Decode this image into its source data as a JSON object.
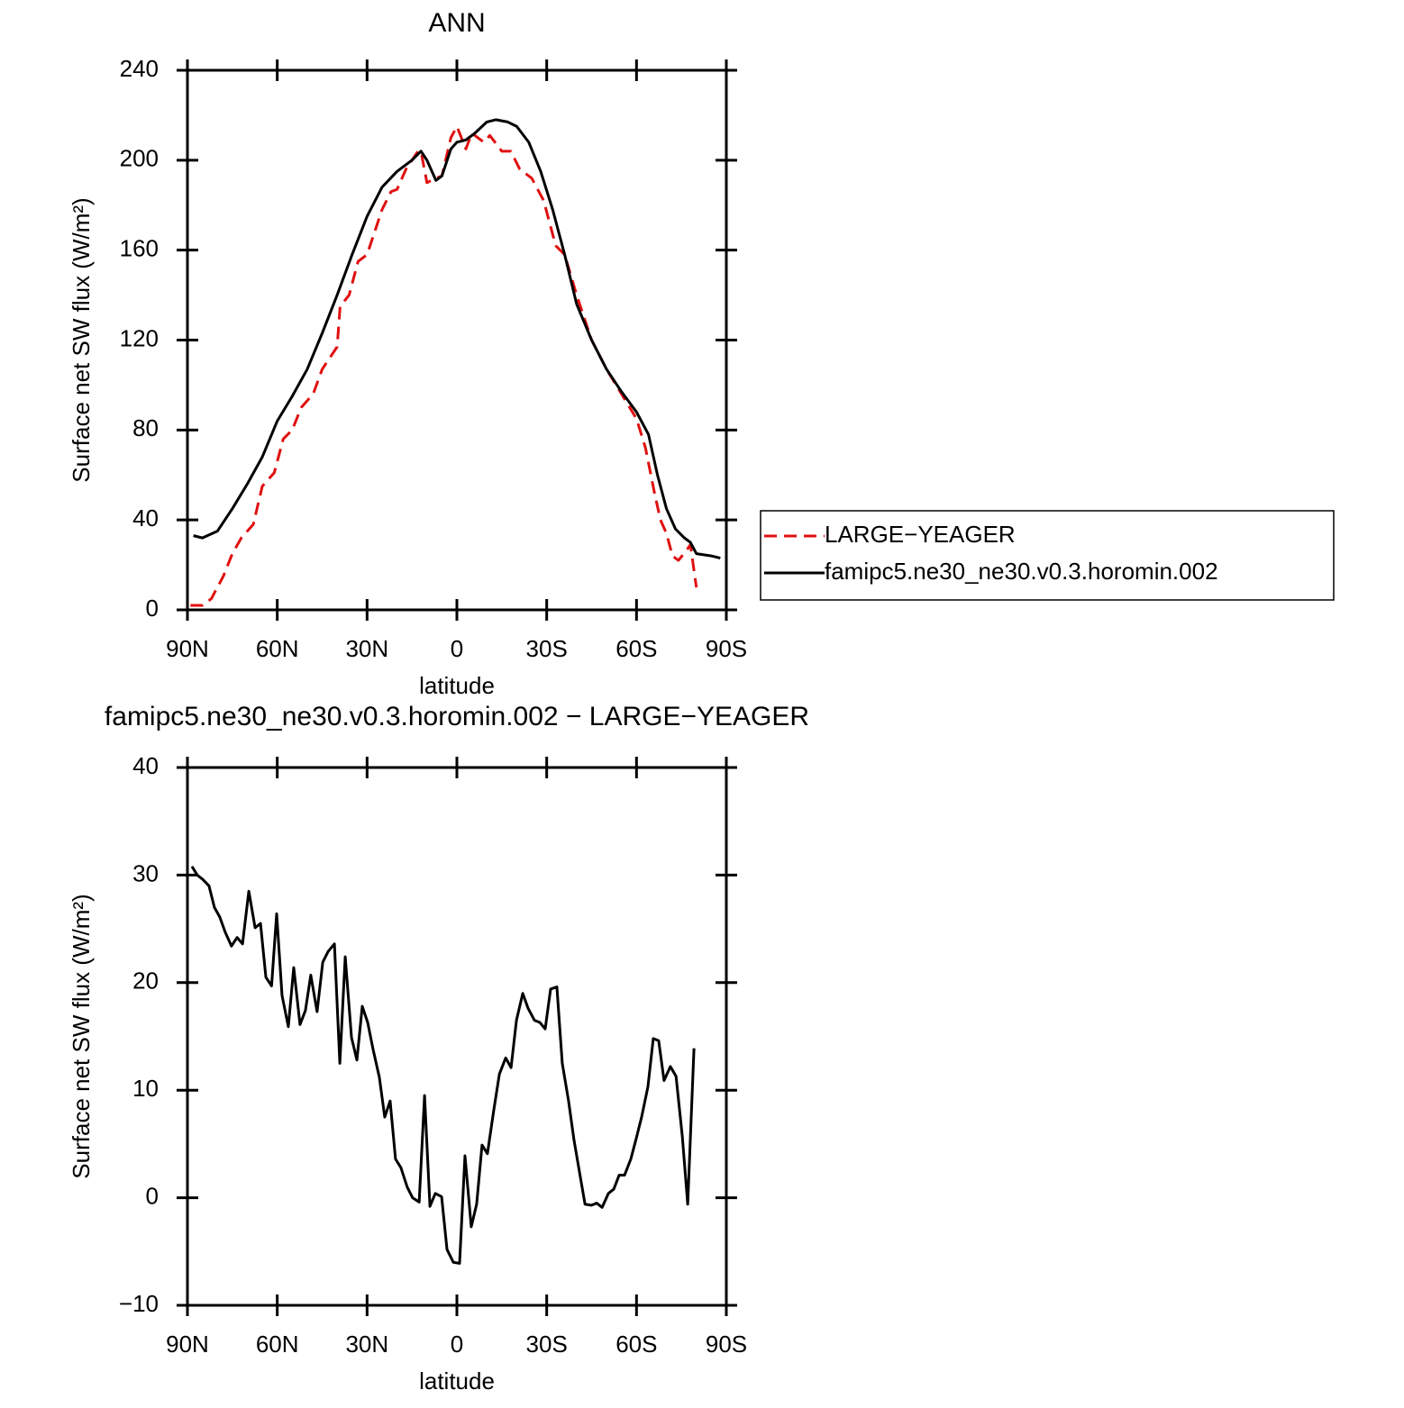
{
  "chart_data": [
    {
      "type": "line",
      "title": "ANN",
      "xlabel": "latitude",
      "ylabel": "Surface net SW flux (W/m²)",
      "xlim": [
        90,
        -90
      ],
      "xticks": [
        {
          "value": 90,
          "label": "90N"
        },
        {
          "value": 60,
          "label": "60N"
        },
        {
          "value": 30,
          "label": "30N"
        },
        0,
        {
          "value": -30,
          "label": "30S"
        },
        {
          "value": -60,
          "label": "60S"
        },
        {
          "value": -90,
          "label": "90S"
        }
      ],
      "ylim": [
        0,
        240
      ],
      "yticks": [
        0,
        40,
        80,
        120,
        160,
        200,
        240
      ],
      "legend": "outside right",
      "series": [
        {
          "name": "LARGE−YEAGER",
          "color": "#e01010",
          "style": "dashed",
          "x": [
            89,
            85,
            82,
            78,
            75,
            72,
            68,
            65,
            61,
            58,
            55,
            52,
            48,
            45,
            40,
            39,
            36,
            33,
            30,
            25,
            22,
            20,
            17,
            13,
            12,
            10,
            7,
            5,
            2,
            0,
            -3,
            -5,
            -9,
            -11,
            -15,
            -18,
            -21,
            -25,
            -29,
            -33,
            -36,
            -40,
            -45,
            -50,
            -55,
            -60,
            -63,
            -66,
            -68,
            -70,
            -72,
            -74,
            -77,
            -78,
            -80
          ],
          "values": [
            2,
            2,
            5,
            15,
            25,
            32,
            38,
            55,
            61,
            76,
            80,
            90,
            96,
            107,
            117,
            135,
            140,
            155,
            158,
            178,
            186,
            187,
            196,
            204,
            204,
            190,
            192,
            193,
            210,
            215,
            205,
            212,
            208,
            211,
            204,
            204,
            196,
            192,
            182,
            162,
            158,
            140,
            120,
            107,
            96,
            85,
            72,
            52,
            40,
            34,
            24,
            22,
            27,
            29,
            10
          ]
        },
        {
          "name": "famipc5.ne30_ne30.v0.3.horomin.002",
          "color": "#000000",
          "style": "solid",
          "x": [
            88,
            85,
            80,
            75,
            70,
            65,
            60,
            55,
            50,
            45,
            40,
            35,
            30,
            25,
            20,
            15,
            12,
            10,
            7,
            5,
            2,
            0,
            -3,
            -6,
            -10,
            -13,
            -17,
            -20,
            -24,
            -28,
            -32,
            -36,
            -40,
            -45,
            -50,
            -55,
            -60,
            -64,
            -67,
            -70,
            -73,
            -76,
            -78,
            -80,
            -85,
            -88
          ],
          "values": [
            33,
            32,
            35,
            45,
            56,
            68,
            84,
            95,
            107,
            123,
            140,
            158,
            175,
            188,
            195,
            200,
            204,
            200,
            191,
            193,
            205,
            208,
            209,
            212,
            217,
            218,
            217,
            215,
            208,
            195,
            178,
            158,
            136,
            120,
            107,
            97,
            88,
            78,
            60,
            45,
            36,
            32,
            30,
            25,
            24,
            23
          ]
        }
      ]
    },
    {
      "type": "line",
      "title": "famipc5.ne30_ne30.v0.3.horomin.002 − LARGE−YEAGER",
      "xlabel": "latitude",
      "ylabel": "Surface net SW flux (W/m²)",
      "xlim": [
        90,
        -90
      ],
      "xticks": [
        {
          "value": 90,
          "label": "90N"
        },
        {
          "value": 60,
          "label": "60N"
        },
        {
          "value": 30,
          "label": "30N"
        },
        0,
        {
          "value": -30,
          "label": "30S"
        },
        {
          "value": -60,
          "label": "60S"
        },
        {
          "value": -90,
          "label": "90S"
        }
      ],
      "ylim": [
        -10,
        40
      ],
      "yticks": [
        {
          "value": -10,
          "label": "−10"
        },
        0,
        10,
        20,
        30,
        40
      ],
      "series": [
        {
          "color": "#000000",
          "style": "solid",
          "x": [
            88.5,
            86.7,
            84.9,
            82.8,
            81,
            79.2,
            77.4,
            75.3,
            73.4,
            71.6,
            69.5,
            67.4,
            65.6,
            63.8,
            61.9,
            60.2,
            58.4,
            56.3,
            54.5,
            52.4,
            50.6,
            48.8,
            46.7,
            44.8,
            43,
            40.9,
            39.1,
            37.3,
            35.2,
            33.4,
            31.6,
            29.8,
            28,
            25.9,
            24.1,
            22.3,
            20.5,
            18.7,
            16.6,
            14.8,
            12.6,
            10.8,
            9,
            7.2,
            5.1,
            3.3,
            1.2,
            -0.9,
            -2.7,
            -4.8,
            -6.6,
            -8.4,
            -10.2,
            -12.3,
            -14.2,
            -16.3,
            -18.1,
            -19.9,
            -22,
            -23.8,
            -25.9,
            -27.7,
            -29.5,
            -31.3,
            -33.4,
            -35.2,
            -37.3,
            -39.1,
            -41,
            -42.8,
            -44.9,
            -46.7,
            -48.5,
            -50.6,
            -52.4,
            -54.2,
            -56,
            -58.1,
            -59.9,
            -61.7,
            -63.8,
            -65.6,
            -67.4,
            -69.2,
            -71.3,
            -73.2,
            -75.3,
            -77.1,
            -79.2
          ],
          "values": [
            30.8,
            30,
            29.6,
            29,
            27,
            26.1,
            24.7,
            23.4,
            24.2,
            23.6,
            28.5,
            25.1,
            25.5,
            20.5,
            19.7,
            26.4,
            18.8,
            15.9,
            21.4,
            16.1,
            17.4,
            20.7,
            17.3,
            21.9,
            22.9,
            23.6,
            12.5,
            22.4,
            14.9,
            12.8,
            17.8,
            16.3,
            13.8,
            11.2,
            7.5,
            9,
            3.6,
            2.8,
            1,
            0,
            -0.4,
            9.5,
            -0.8,
            0.4,
            0.1,
            -4.8,
            -6,
            -6.1,
            3.9,
            -2.7,
            -0.6,
            4.9,
            4.1,
            8.1,
            11.5,
            13,
            12.1,
            16.5,
            19,
            17.6,
            16.5,
            16.3,
            15.7,
            19.4,
            19.6,
            12.5,
            9,
            5.4,
            2.3,
            -0.6,
            -0.7,
            -0.5,
            -0.9,
            0.4,
            0.8,
            2.1,
            2.1,
            3.6,
            5.5,
            7.5,
            10.3,
            14.8,
            14.6,
            10.9,
            12.2,
            11.3,
            5.7,
            -0.6,
            13.9
          ]
        }
      ]
    }
  ]
}
